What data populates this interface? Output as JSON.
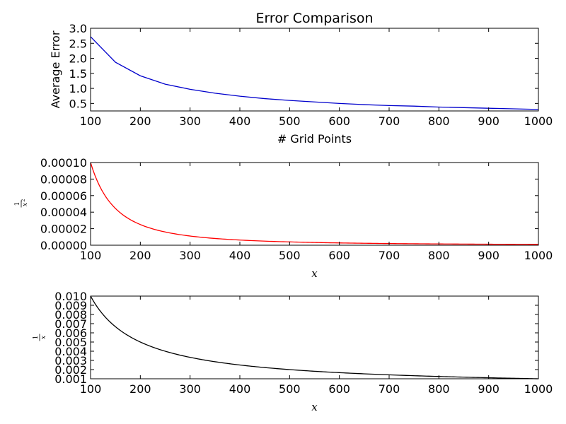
{
  "chart_data": [
    {
      "type": "line",
      "title": "Error Comparison",
      "xlabel": "# Grid Points",
      "ylabel": "Average Error",
      "xlim": [
        100,
        1000
      ],
      "ylim": [
        0.25,
        3.0
      ],
      "x_ticks": [
        100,
        200,
        300,
        400,
        500,
        600,
        700,
        800,
        900,
        1000
      ],
      "y_ticks": [
        0.5,
        1.0,
        1.5,
        2.0,
        2.5,
        3.0
      ],
      "x_tick_labels": [
        "100",
        "200",
        "300",
        "400",
        "500",
        "600",
        "700",
        "800",
        "900",
        "1000"
      ],
      "y_tick_labels": [
        "0.5",
        "1.0",
        "1.5",
        "2.0",
        "2.5",
        "3.0"
      ],
      "grid": false,
      "series": [
        {
          "color": "#0000cc",
          "x": [
            100,
            150,
            200,
            250,
            300,
            350,
            400,
            450,
            500,
            550,
            600,
            650,
            700,
            750,
            800,
            850,
            900,
            950,
            1000
          ],
          "y": [
            2.72,
            1.87,
            1.42,
            1.14,
            0.97,
            0.84,
            0.74,
            0.66,
            0.6,
            0.55,
            0.5,
            0.46,
            0.43,
            0.41,
            0.38,
            0.36,
            0.34,
            0.32,
            0.3
          ]
        }
      ]
    },
    {
      "type": "line",
      "title": "",
      "xlabel": "x",
      "ylabel": "1/x^2",
      "ylabel_num": "1",
      "ylabel_den": "x",
      "ylabel_exp": "2",
      "function": "1/x^2",
      "xlim": [
        100,
        1000
      ],
      "ylim": [
        0,
        0.0001
      ],
      "x_ticks": [
        100,
        200,
        300,
        400,
        500,
        600,
        700,
        800,
        900,
        1000
      ],
      "y_ticks": [
        0,
        2e-05,
        4e-05,
        6e-05,
        8e-05,
        0.0001
      ],
      "x_tick_labels": [
        "100",
        "200",
        "300",
        "400",
        "500",
        "600",
        "700",
        "800",
        "900",
        "1000"
      ],
      "y_tick_labels": [
        "0.00000",
        "0.00002",
        "0.00004",
        "0.00006",
        "0.00008",
        "0.00010"
      ],
      "grid": false,
      "series": [
        {
          "color": "#ff0000",
          "function": "1/x^2"
        }
      ]
    },
    {
      "type": "line",
      "title": "",
      "xlabel": "x",
      "ylabel": "1/x",
      "ylabel_num": "1",
      "ylabel_den": "x",
      "function": "1/x",
      "xlim": [
        100,
        1000
      ],
      "ylim": [
        0.001,
        0.01
      ],
      "x_ticks": [
        100,
        200,
        300,
        400,
        500,
        600,
        700,
        800,
        900,
        1000
      ],
      "y_ticks": [
        0.001,
        0.002,
        0.003,
        0.004,
        0.005,
        0.006,
        0.007,
        0.008,
        0.009,
        0.01
      ],
      "x_tick_labels": [
        "100",
        "200",
        "300",
        "400",
        "500",
        "600",
        "700",
        "800",
        "900",
        "1000"
      ],
      "y_tick_labels": [
        "0.001",
        "0.002",
        "0.003",
        "0.004",
        "0.005",
        "0.006",
        "0.007",
        "0.008",
        "0.009",
        "0.010"
      ],
      "grid": false,
      "series": [
        {
          "color": "#000000",
          "function": "1/x"
        }
      ]
    }
  ]
}
